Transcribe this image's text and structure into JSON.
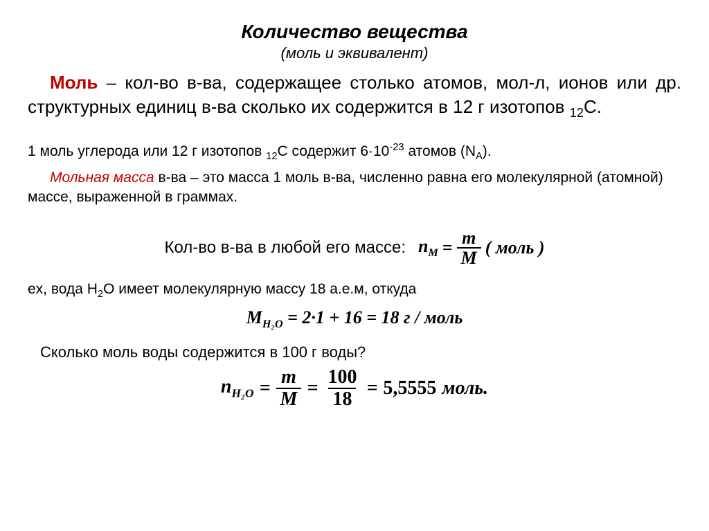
{
  "title": "Количество вещества",
  "subtitle": "(моль и эквивалент)",
  "definition": {
    "term": "Моль",
    "body_part1": " – кол-во в-ва, содержащее столько атомов, мол-л, ионов или др. структурных единиц в-ва сколько их содержится в 12 г изотопов ",
    "isotope_base": "12",
    "isotope_elem": "C."
  },
  "line1": {
    "pre": "1 моль углерода или 12 г изотопов ",
    "iso_sub": "12",
    "iso_el": "C",
    "mid": " содержит 6·10",
    "exp": "-23",
    "post": " атомов (N",
    "na_sub": "A",
    "end": ")."
  },
  "line2": {
    "term": "Мольная масса",
    "rest": " в-ва – это масса 1 моль в-ва, численно равна его молекулярной (атомной) массе, выраженной в граммах."
  },
  "formula1": {
    "label": "Кол-во в-ва в любой его массе:",
    "lhs_var": "n",
    "lhs_sub": "M",
    "eq": "=",
    "num": "m",
    "den": "M",
    "unit": "( моль )"
  },
  "example": {
    "pre": "ex, вода H",
    "h_sub": "2",
    "mid": "O имеет молекулярную массу 18 а.е.м, откуда"
  },
  "eq2": {
    "lhs_M": "M",
    "sub": "H₂O",
    "body": " = 2·1 + 16 = 18 г / моль"
  },
  "question": "Сколько моль воды  содержится в 100 г воды?",
  "eq3": {
    "lhs_n": "n",
    "sub": "H₂O",
    "eq1": "=",
    "num1": "m",
    "den1": "M",
    "eq2": "=",
    "num2": "100",
    "den2": "18",
    "eq3": "=",
    "val": "5,5555",
    "unit": "моль."
  },
  "colors": {
    "accent": "#c00000",
    "text": "#000000",
    "bg": "#ffffff"
  }
}
